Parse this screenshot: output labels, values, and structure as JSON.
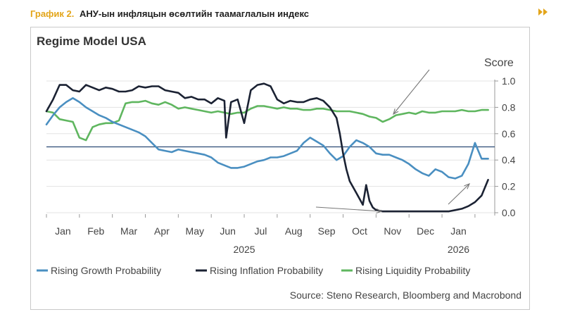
{
  "caption": {
    "number": "График 2.",
    "text": "АНУ-ын инфляцын өсөлтийн таамаглалын индекс"
  },
  "icons": {
    "nav": "double-chevron-right-icon"
  },
  "colors": {
    "accent": "#e3a51a",
    "growth": "#4a8fc1",
    "inflation": "#1b2233",
    "liquidity": "#5fb65f",
    "refline": "#2b4a74"
  },
  "chart_data": {
    "type": "line",
    "title": "Regime Model USA",
    "ylabel": "Score",
    "ylim": [
      0.0,
      1.0
    ],
    "yticks": [
      "0.0",
      "0.2",
      "0.4",
      "0.6",
      "0.8",
      "1.0"
    ],
    "xlim": [
      0,
      13.6
    ],
    "month_labels": [
      "Jan",
      "Feb",
      "Mar",
      "Apr",
      "May",
      "Jun",
      "Jul",
      "Aug",
      "Sep",
      "Oct",
      "Nov",
      "Dec",
      "Jan"
    ],
    "year_labels": [
      "2025",
      "2026"
    ],
    "reference_line": 0.5,
    "legend": [
      "Rising Growth Probability",
      "Rising Inflation Probability",
      "Rising Liquidity Probability"
    ],
    "source": "Source: Steno Research, Bloomberg and Macrobond",
    "series": [
      {
        "name": "Rising Growth Probability",
        "x": [
          0.0,
          0.2,
          0.4,
          0.6,
          0.8,
          1.0,
          1.2,
          1.4,
          1.6,
          1.8,
          2.0,
          2.2,
          2.4,
          2.6,
          2.8,
          3.0,
          3.2,
          3.4,
          3.6,
          3.8,
          4.0,
          4.2,
          4.4,
          4.6,
          4.8,
          5.0,
          5.2,
          5.4,
          5.6,
          5.8,
          6.0,
          6.2,
          6.4,
          6.6,
          6.8,
          7.0,
          7.2,
          7.4,
          7.6,
          7.8,
          8.0,
          8.2,
          8.4,
          8.6,
          8.8,
          9.0,
          9.2,
          9.4,
          9.6,
          9.8,
          10.0,
          10.2,
          10.4,
          10.6,
          10.8,
          11.0,
          11.2,
          11.4,
          11.6,
          11.8,
          12.0,
          12.2,
          12.4,
          12.6,
          12.8,
          13.0,
          13.2,
          13.4
        ],
        "y": [
          0.67,
          0.74,
          0.8,
          0.84,
          0.87,
          0.84,
          0.8,
          0.77,
          0.74,
          0.72,
          0.69,
          0.67,
          0.65,
          0.63,
          0.61,
          0.58,
          0.53,
          0.48,
          0.47,
          0.46,
          0.48,
          0.47,
          0.46,
          0.45,
          0.44,
          0.42,
          0.38,
          0.36,
          0.34,
          0.34,
          0.35,
          0.37,
          0.39,
          0.4,
          0.42,
          0.42,
          0.43,
          0.45,
          0.47,
          0.53,
          0.57,
          0.54,
          0.51,
          0.45,
          0.4,
          0.43,
          0.5,
          0.55,
          0.53,
          0.5,
          0.45,
          0.44,
          0.44,
          0.42,
          0.4,
          0.37,
          0.33,
          0.3,
          0.28,
          0.33,
          0.31,
          0.27,
          0.26,
          0.28,
          0.37,
          0.53,
          0.41,
          0.41
        ]
      },
      {
        "name": "Rising Inflation Probability",
        "x": [
          0.0,
          0.2,
          0.4,
          0.6,
          0.8,
          1.0,
          1.2,
          1.4,
          1.6,
          1.8,
          2.0,
          2.2,
          2.4,
          2.6,
          2.8,
          3.0,
          3.2,
          3.4,
          3.6,
          3.8,
          4.0,
          4.2,
          4.4,
          4.6,
          4.8,
          5.0,
          5.2,
          5.4,
          5.45,
          5.6,
          5.8,
          6.0,
          6.2,
          6.4,
          6.6,
          6.8,
          7.0,
          7.2,
          7.4,
          7.6,
          7.8,
          8.0,
          8.2,
          8.4,
          8.6,
          8.8,
          8.9,
          9.0,
          9.1,
          9.2,
          9.4,
          9.6,
          9.7,
          9.8,
          9.9,
          10.0,
          10.2,
          10.4,
          10.6,
          10.8,
          11.0,
          11.2,
          11.4,
          11.6,
          11.8,
          12.0,
          12.2,
          12.4,
          12.6,
          12.8,
          13.0,
          13.2,
          13.4
        ],
        "y": [
          0.77,
          0.86,
          0.97,
          0.97,
          0.93,
          0.92,
          0.97,
          0.95,
          0.93,
          0.95,
          0.94,
          0.92,
          0.92,
          0.93,
          0.96,
          0.95,
          0.96,
          0.96,
          0.93,
          0.92,
          0.91,
          0.87,
          0.88,
          0.86,
          0.86,
          0.83,
          0.87,
          0.85,
          0.57,
          0.84,
          0.86,
          0.68,
          0.93,
          0.97,
          0.98,
          0.96,
          0.86,
          0.83,
          0.85,
          0.84,
          0.84,
          0.86,
          0.87,
          0.85,
          0.8,
          0.72,
          0.6,
          0.45,
          0.33,
          0.24,
          0.15,
          0.06,
          0.21,
          0.09,
          0.04,
          0.02,
          0.01,
          0.01,
          0.01,
          0.01,
          0.01,
          0.01,
          0.01,
          0.01,
          0.01,
          0.01,
          0.01,
          0.02,
          0.03,
          0.05,
          0.08,
          0.13,
          0.25
        ]
      },
      {
        "name": "Rising Liquidity Probability",
        "x": [
          0.0,
          0.2,
          0.4,
          0.6,
          0.8,
          1.0,
          1.2,
          1.4,
          1.6,
          1.8,
          2.0,
          2.2,
          2.4,
          2.6,
          2.8,
          3.0,
          3.2,
          3.4,
          3.6,
          3.8,
          4.0,
          4.2,
          4.4,
          4.6,
          4.8,
          5.0,
          5.2,
          5.4,
          5.6,
          5.8,
          6.0,
          6.2,
          6.4,
          6.6,
          6.8,
          7.0,
          7.2,
          7.4,
          7.6,
          7.8,
          8.0,
          8.2,
          8.4,
          8.6,
          8.8,
          9.0,
          9.2,
          9.4,
          9.6,
          9.8,
          10.0,
          10.2,
          10.4,
          10.6,
          10.8,
          11.0,
          11.2,
          11.4,
          11.6,
          11.8,
          12.0,
          12.2,
          12.4,
          12.6,
          12.8,
          13.0,
          13.2,
          13.4
        ],
        "y": [
          0.77,
          0.76,
          0.71,
          0.7,
          0.69,
          0.57,
          0.55,
          0.65,
          0.67,
          0.68,
          0.68,
          0.7,
          0.83,
          0.84,
          0.84,
          0.85,
          0.83,
          0.82,
          0.84,
          0.82,
          0.79,
          0.8,
          0.79,
          0.78,
          0.77,
          0.76,
          0.77,
          0.76,
          0.75,
          0.76,
          0.76,
          0.79,
          0.81,
          0.81,
          0.8,
          0.79,
          0.8,
          0.79,
          0.79,
          0.78,
          0.78,
          0.79,
          0.79,
          0.78,
          0.77,
          0.77,
          0.77,
          0.76,
          0.75,
          0.73,
          0.72,
          0.69,
          0.71,
          0.74,
          0.75,
          0.76,
          0.75,
          0.77,
          0.76,
          0.76,
          0.77,
          0.77,
          0.77,
          0.78,
          0.77,
          0.77,
          0.78,
          0.78
        ]
      }
    ]
  }
}
